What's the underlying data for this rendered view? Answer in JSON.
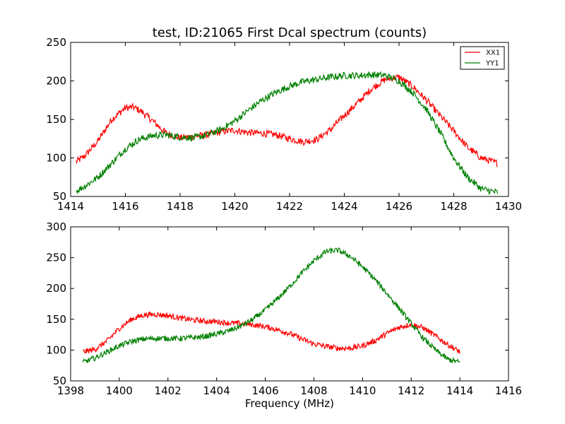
{
  "chart_data": [
    {
      "type": "line",
      "title": "test, ID:21065 First Dcal spectrum (counts)",
      "xlabel": "",
      "ylabel": "",
      "xlim": [
        1414,
        1430
      ],
      "ylim": [
        50,
        250
      ],
      "xticks": [
        "1414",
        "1416",
        "1418",
        "1420",
        "1422",
        "1424",
        "1426",
        "1428",
        "1430"
      ],
      "yticks": [
        "50",
        "100",
        "150",
        "200",
        "250"
      ],
      "grid": false,
      "legend": "top-right",
      "series": [
        {
          "name": "XX1",
          "color": "#ff0000",
          "x": [
            1414.2,
            1414.5,
            1415.0,
            1415.5,
            1416.0,
            1416.3,
            1416.6,
            1417.0,
            1417.5,
            1418.0,
            1418.5,
            1419.0,
            1419.5,
            1420.0,
            1420.5,
            1421.0,
            1421.5,
            1422.0,
            1422.5,
            1423.0,
            1423.5,
            1424.0,
            1424.5,
            1425.0,
            1425.5,
            1426.0,
            1426.5,
            1427.0,
            1427.5,
            1428.0,
            1428.5,
            1429.0,
            1429.6
          ],
          "y": [
            95,
            102,
            122,
            150,
            165,
            166,
            160,
            148,
            132,
            126,
            128,
            130,
            134,
            136,
            133,
            132,
            130,
            125,
            121,
            124,
            137,
            155,
            172,
            190,
            202,
            205,
            193,
            175,
            155,
            135,
            114,
            100,
            93
          ]
        },
        {
          "name": "YY1",
          "color": "#008000",
          "x": [
            1414.2,
            1414.5,
            1415.0,
            1415.5,
            1416.0,
            1416.5,
            1417.0,
            1417.5,
            1418.0,
            1418.5,
            1419.0,
            1419.5,
            1420.0,
            1420.5,
            1421.0,
            1421.5,
            1422.0,
            1422.5,
            1423.0,
            1423.5,
            1424.0,
            1424.5,
            1425.0,
            1425.5,
            1426.0,
            1426.5,
            1427.0,
            1427.5,
            1428.0,
            1428.5,
            1429.0,
            1429.6
          ],
          "y": [
            57,
            63,
            75,
            93,
            112,
            124,
            129,
            130,
            127,
            126,
            130,
            137,
            148,
            162,
            175,
            185,
            193,
            199,
            202,
            205,
            207,
            207,
            208,
            207,
            200,
            185,
            163,
            133,
            100,
            75,
            60,
            55
          ]
        }
      ]
    },
    {
      "type": "line",
      "title": "",
      "xlabel": "Frequency (MHz)",
      "ylabel": "",
      "xlim": [
        1398,
        1416
      ],
      "ylim": [
        50,
        300
      ],
      "xticks": [
        "1398",
        "1400",
        "1402",
        "1404",
        "1406",
        "1408",
        "1410",
        "1412",
        "1414",
        "1416"
      ],
      "yticks": [
        "50",
        "100",
        "150",
        "200",
        "250",
        "300"
      ],
      "grid": false,
      "legend": "none",
      "series": [
        {
          "name": "XX1",
          "color": "#ff0000",
          "x": [
            1398.5,
            1399.0,
            1399.5,
            1400.0,
            1400.5,
            1401.0,
            1401.5,
            1402.0,
            1402.5,
            1403.0,
            1403.5,
            1404.0,
            1404.5,
            1405.0,
            1405.5,
            1406.0,
            1406.5,
            1407.0,
            1407.5,
            1408.0,
            1408.5,
            1409.0,
            1409.5,
            1410.0,
            1410.5,
            1411.0,
            1411.5,
            1412.0,
            1412.5,
            1413.0,
            1413.5,
            1414.0
          ],
          "y": [
            97,
            101,
            115,
            135,
            150,
            157,
            158,
            156,
            152,
            149,
            147,
            146,
            144,
            143,
            141,
            138,
            133,
            127,
            118,
            110,
            106,
            103,
            103,
            107,
            115,
            127,
            137,
            142,
            136,
            123,
            109,
            97
          ]
        },
        {
          "name": "YY1",
          "color": "#008000",
          "x": [
            1398.5,
            1399.0,
            1399.5,
            1400.0,
            1400.5,
            1401.0,
            1401.5,
            1402.0,
            1402.5,
            1403.0,
            1403.5,
            1404.0,
            1404.5,
            1405.0,
            1405.5,
            1406.0,
            1406.5,
            1407.0,
            1407.5,
            1408.0,
            1408.5,
            1409.0,
            1409.5,
            1410.0,
            1410.5,
            1411.0,
            1411.5,
            1412.0,
            1412.5,
            1413.0,
            1413.5,
            1414.0
          ],
          "y": [
            80,
            87,
            97,
            107,
            114,
            118,
            119,
            119,
            119,
            120,
            122,
            126,
            131,
            139,
            150,
            165,
            183,
            203,
            225,
            245,
            260,
            262,
            252,
            235,
            215,
            192,
            168,
            143,
            119,
            100,
            85,
            80
          ]
        }
      ]
    }
  ]
}
